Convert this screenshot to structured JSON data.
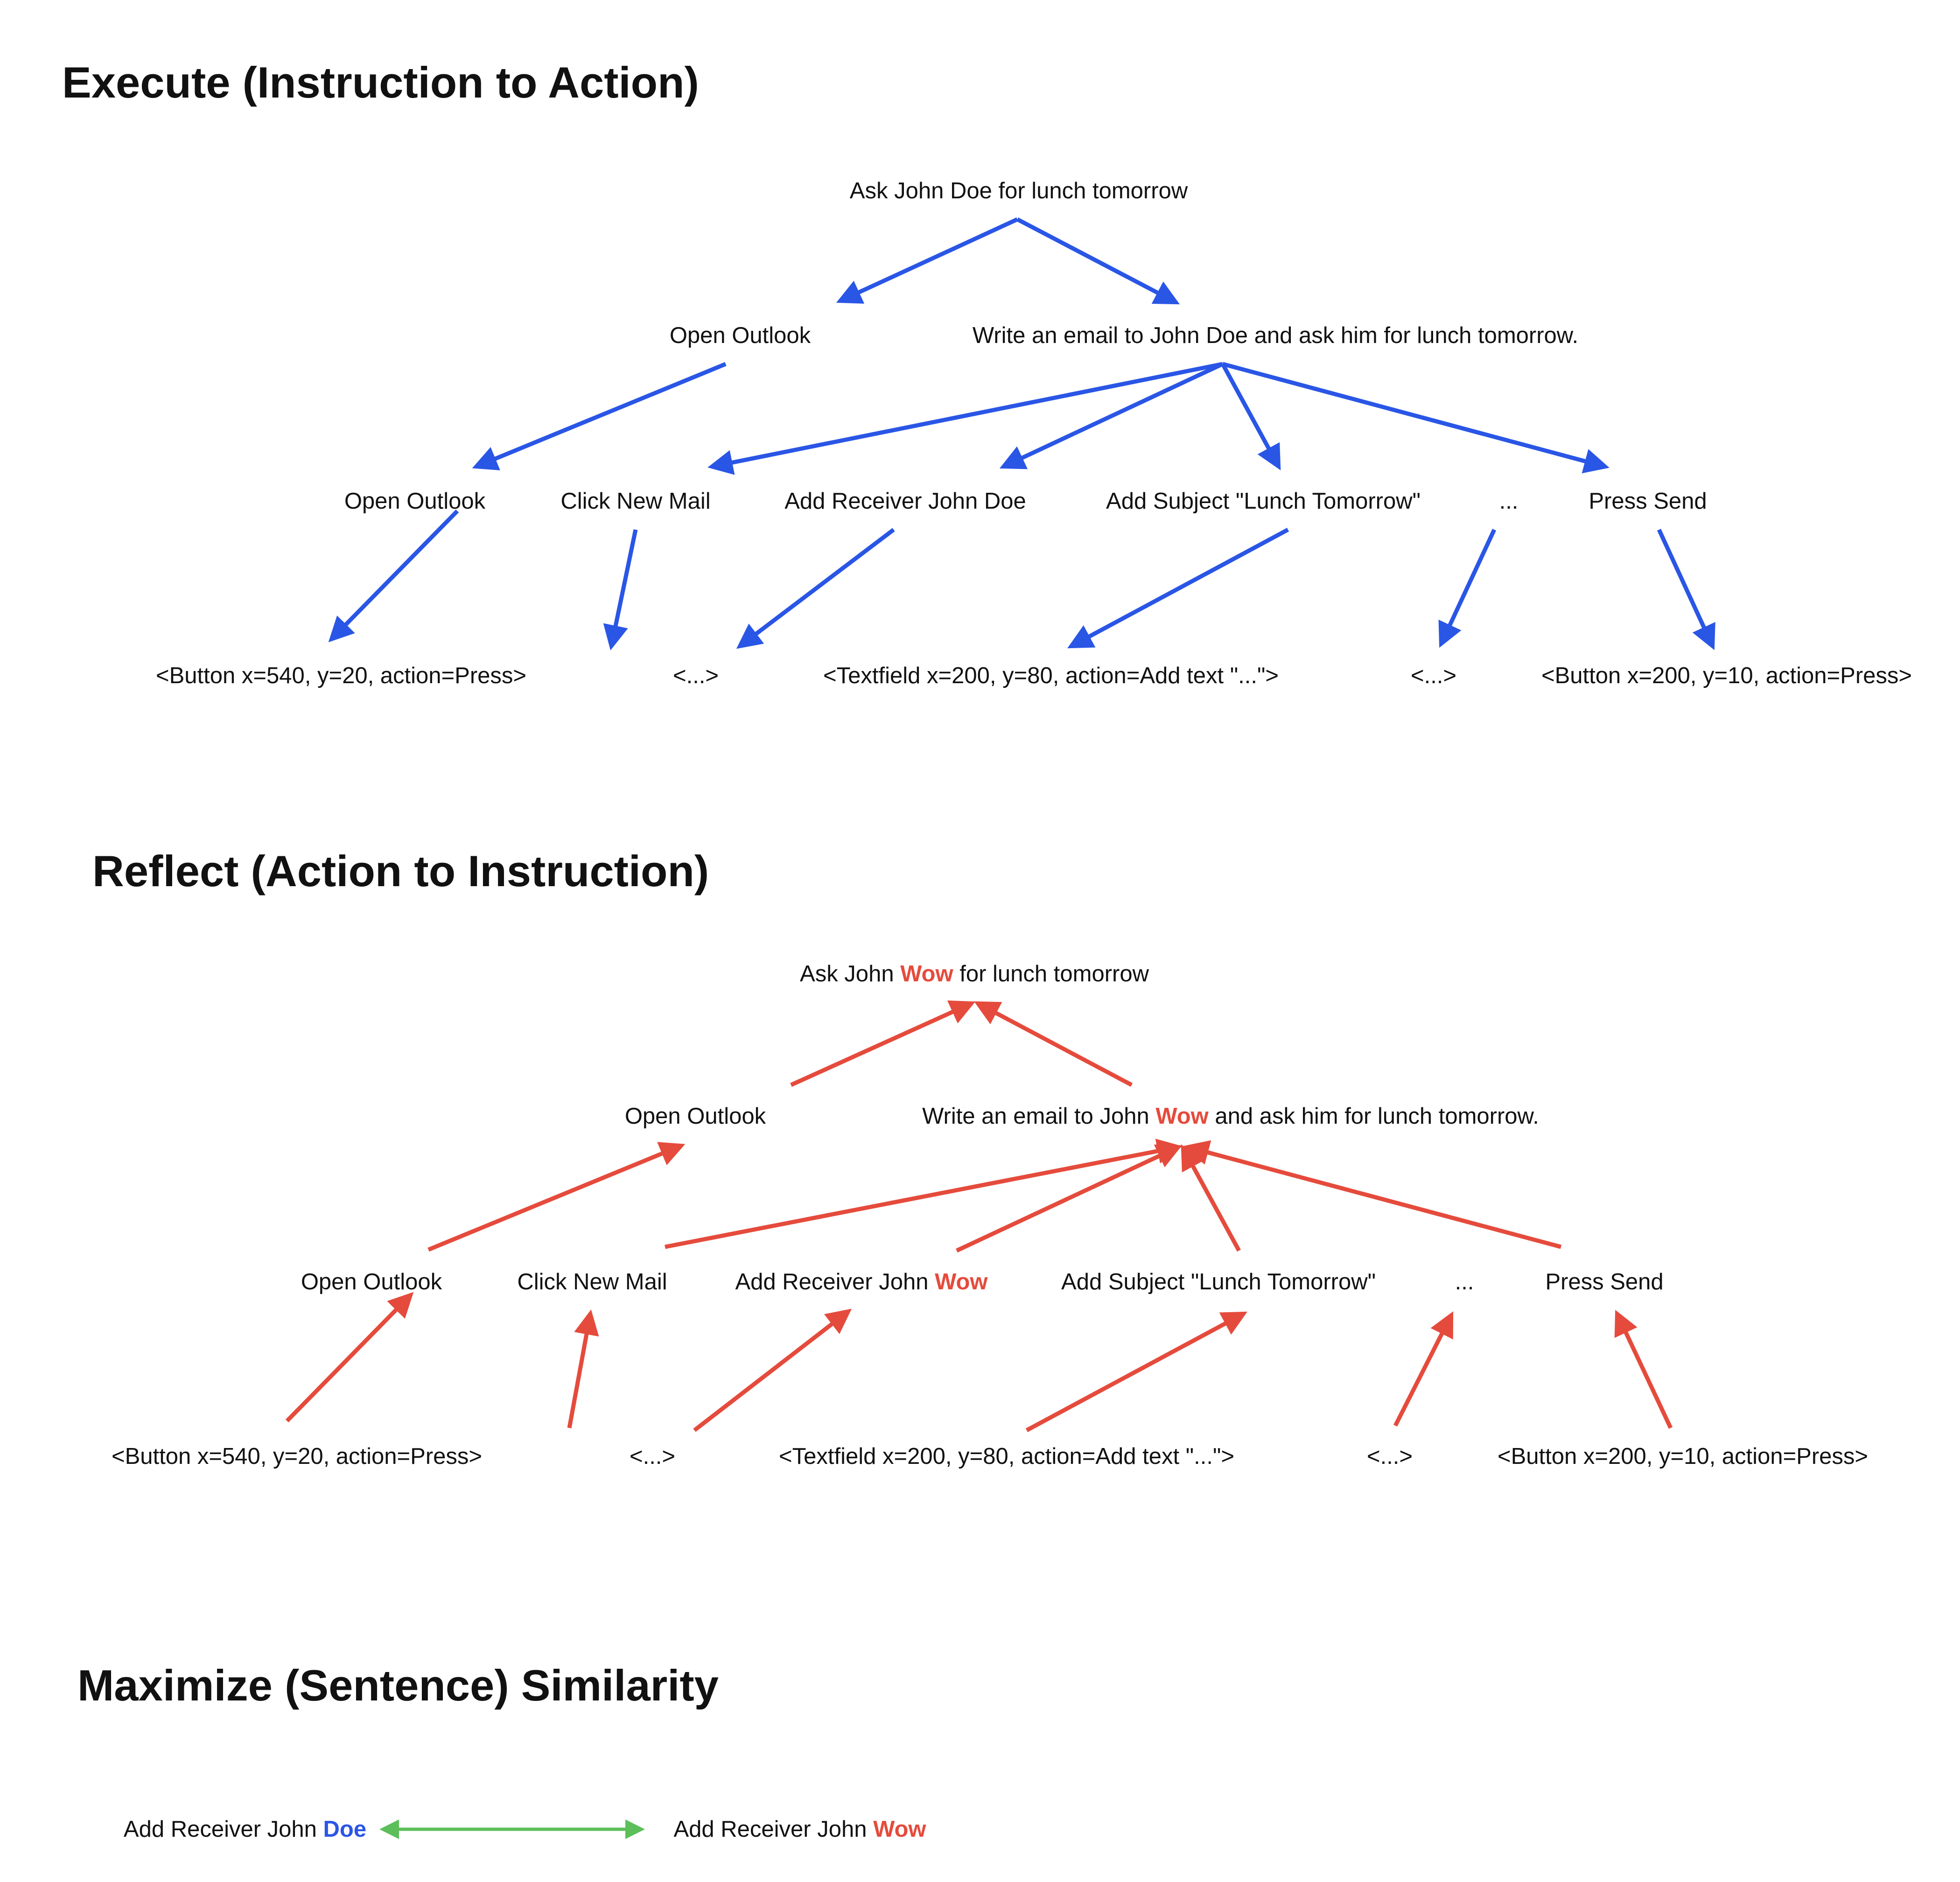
{
  "colors": {
    "execute": "#2a56e6",
    "reflect": "#e54b3c",
    "similarity": "#5cbf5a",
    "text": "#111111"
  },
  "sections": {
    "execute_title": "Execute (Instruction to Action)",
    "reflect_title": "Reflect (Action to Instruction)",
    "similarity_title": "Maximize (Sentence) Similarity"
  },
  "execute": {
    "root": "Ask John Doe for lunch tomorrow",
    "l1": [
      "Open Outlook",
      "Write an email to John Doe and ask him for lunch tomorrow."
    ],
    "l2": [
      "Open Outlook",
      "Click New Mail",
      "Add Receiver John Doe",
      "Add Subject \"Lunch Tomorrow\"",
      "...",
      "Press Send"
    ],
    "l3": [
      "<Button x=540, y=20, action=Press>",
      "<...>",
      "<Textfield x=200, y=80, action=Add text \"...\">",
      "<...>",
      "<Button x=200, y=10, action=Press>"
    ]
  },
  "reflect": {
    "root": {
      "pre": "Ask John ",
      "hl": "Wow",
      "post": " for lunch tomorrow"
    },
    "l1_a": "Open Outlook",
    "l1_b": {
      "pre": "Write an email to John ",
      "hl": "Wow",
      "post": " and ask him for lunch tomorrow."
    },
    "l2_a": "Open Outlook",
    "l2_b": "Click New Mail",
    "l2_c": {
      "pre": "Add Receiver John ",
      "hl": "Wow"
    },
    "l2_d": "Add Subject \"Lunch Tomorrow\"",
    "l2_e": "...",
    "l2_f": "Press Send",
    "l3": [
      "<Button x=540, y=20, action=Press>",
      "<...>",
      "<Textfield x=200, y=80, action=Add text \"...\">",
      "<...>",
      "<Button x=200, y=10, action=Press>"
    ]
  },
  "similarity": {
    "left": {
      "pre": "Add Receiver John ",
      "hl": "Doe"
    },
    "right": {
      "pre": "Add Receiver John ",
      "hl": "Wow"
    }
  }
}
